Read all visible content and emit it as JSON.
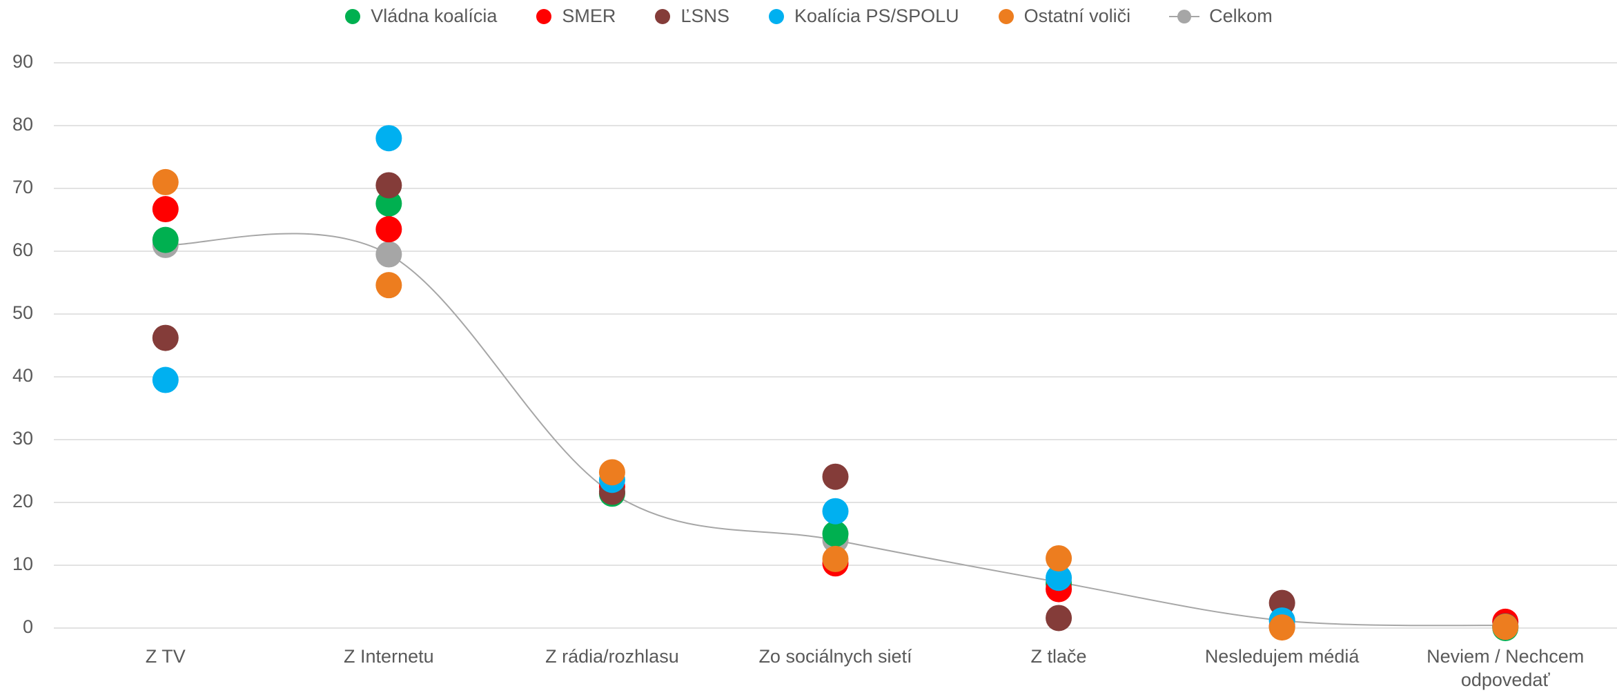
{
  "chart_data": {
    "type": "scatter",
    "categories": [
      "Z TV",
      "Z Internetu",
      "Z rádia/rozhlasu",
      "Zo sociálnych sietí",
      "Z tlače",
      "Nesledujem médiá",
      "Neviem / Nechcem odpovedať"
    ],
    "series": [
      {
        "name": "Celkom",
        "color": "#a6a6a6",
        "line": true,
        "values": [
          61,
          59.5,
          21.5,
          14,
          7.3,
          1.2,
          0.4
        ]
      },
      {
        "name": "Vládna koalícia",
        "color": "#00b050",
        "values": [
          61.8,
          67.6,
          21.4,
          15,
          7,
          0.2,
          0
        ]
      },
      {
        "name": "SMER",
        "color": "#ff0000",
        "values": [
          66.7,
          63.5,
          22.5,
          10.3,
          6.2,
          0.3,
          1
        ]
      },
      {
        "name": "ĽSNS",
        "color": "#843c39",
        "values": [
          46.2,
          70.5,
          21.7,
          24.1,
          1.6,
          4,
          0.3
        ]
      },
      {
        "name": "Koalícia PS/SPOLU",
        "color": "#00b0f0",
        "values": [
          39.5,
          78,
          23.6,
          18.6,
          8,
          1.2,
          0.2
        ]
      },
      {
        "name": "Ostatní voliči",
        "color": "#ed7d1f",
        "values": [
          71,
          54.6,
          24.8,
          11,
          11.1,
          0.1,
          0.2
        ]
      }
    ],
    "ylim": [
      0,
      90
    ],
    "yticks": [
      0,
      10,
      20,
      30,
      40,
      50,
      60,
      70,
      80,
      90
    ],
    "grid": true
  }
}
